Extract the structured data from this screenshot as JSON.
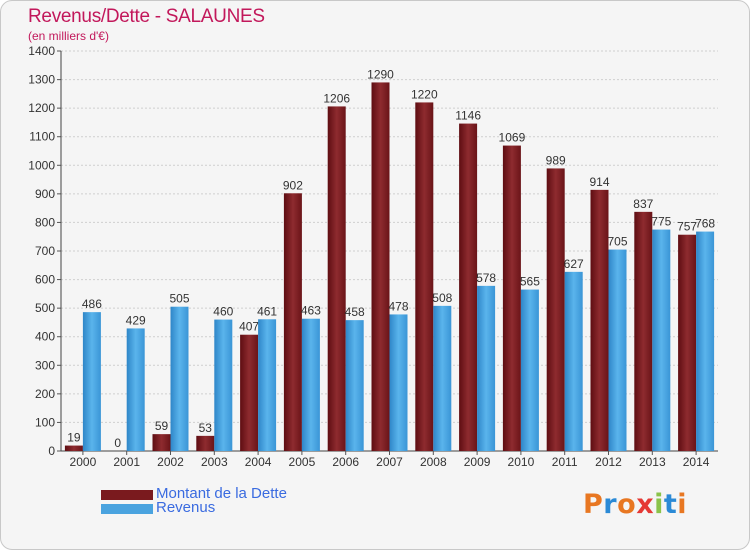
{
  "header": {
    "title": "Revenus/Dette - SALAUNES",
    "subtitle": "(en milliers d'€)"
  },
  "legend": {
    "items": [
      {
        "label": "Montant de la Dette",
        "color": "#7a1a1e"
      },
      {
        "label": "Revenus",
        "color": "#4aa3df"
      }
    ]
  },
  "logo": {
    "text": "Proxiti",
    "colors": [
      "#e87722",
      "#2b8ad6",
      "#e87722",
      "#e53935",
      "#8bc34a",
      "#2b8ad6",
      "#e87722"
    ]
  },
  "chart_data": {
    "type": "bar",
    "title": "Revenus/Dette - SALAUNES",
    "subtitle": "(en milliers d'€)",
    "categories": [
      "2000",
      "2001",
      "2002",
      "2003",
      "2004",
      "2005",
      "2006",
      "2007",
      "2008",
      "2009",
      "2010",
      "2011",
      "2012",
      "2013",
      "2014"
    ],
    "series": [
      {
        "name": "Montant de la Dette",
        "color": "#7a1a1e",
        "values": [
          19,
          0,
          59,
          53,
          407,
          902,
          1206,
          1290,
          1220,
          1146,
          1069,
          989,
          914,
          837,
          757
        ]
      },
      {
        "name": "Revenus",
        "color": "#4aa3df",
        "values": [
          486,
          429,
          505,
          460,
          461,
          463,
          458,
          478,
          508,
          578,
          565,
          627,
          705,
          775,
          768
        ]
      }
    ],
    "ylim": [
      0,
      1400
    ],
    "yticks": [
      0,
      100,
      200,
      300,
      400,
      500,
      600,
      700,
      800,
      900,
      1000,
      1100,
      1200,
      1300,
      1400
    ],
    "grid": true,
    "legend_position": "bottom-left"
  }
}
